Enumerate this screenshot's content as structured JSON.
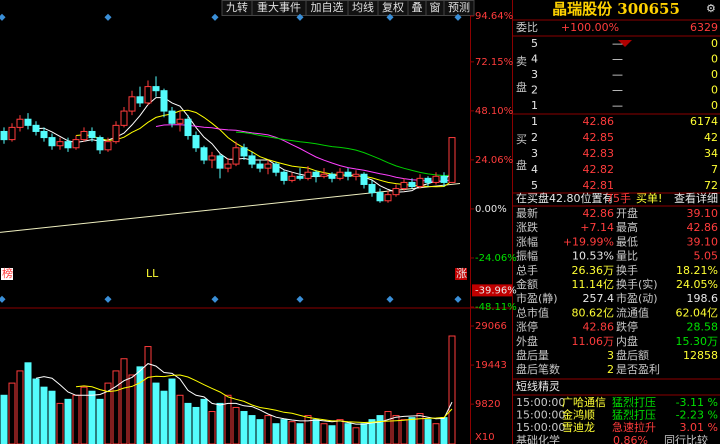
{
  "toolbar": [
    "九转",
    "重大事件",
    "加自选",
    "均线",
    "复权",
    "叠",
    "窗",
    "预测"
  ],
  "chart": {
    "type": "candlestick",
    "ylim": [
      -48.11,
      94.64
    ],
    "yticks": [
      {
        "value": 94.64,
        "label": "94.64%"
      },
      {
        "value": 72.15,
        "label": "72.15%"
      },
      {
        "value": 48.1,
        "label": "48.10%"
      },
      {
        "value": 24.06,
        "label": "24.06%"
      },
      {
        "value": 0,
        "label": "0.00%"
      },
      {
        "value": -24.06,
        "label": "-24.06%"
      },
      {
        "value": -48.11,
        "label": "-48.11%"
      }
    ],
    "current_tick": {
      "value": -39.96,
      "label": "-39.96%"
    },
    "trend": [
      -11.5,
      12.5
    ],
    "candles": [
      [
        38,
        34,
        40,
        32
      ],
      [
        34,
        40,
        42,
        33
      ],
      [
        40,
        44,
        46,
        38
      ],
      [
        44,
        41,
        47,
        39
      ],
      [
        41,
        38,
        43,
        36
      ],
      [
        38,
        35,
        40,
        33
      ],
      [
        35,
        31,
        37,
        29
      ],
      [
        31,
        33,
        35,
        29
      ],
      [
        33,
        30,
        35,
        28
      ],
      [
        30,
        34,
        36,
        29
      ],
      [
        34,
        38,
        40,
        33
      ],
      [
        38,
        35,
        40,
        33
      ],
      [
        35,
        29,
        36,
        27
      ],
      [
        29,
        33,
        35,
        28
      ],
      [
        33,
        41,
        43,
        32
      ],
      [
        41,
        48,
        50,
        40
      ],
      [
        48,
        55,
        58,
        46
      ],
      [
        55,
        52,
        60,
        50
      ],
      [
        52,
        60,
        63,
        51
      ],
      [
        60,
        58,
        65,
        55
      ],
      [
        58,
        48,
        59,
        45
      ],
      [
        48,
        42,
        50,
        40
      ],
      [
        42,
        44,
        48,
        38
      ],
      [
        44,
        36,
        46,
        34
      ],
      [
        36,
        30,
        38,
        28
      ],
      [
        30,
        24,
        31,
        22
      ],
      [
        24,
        26,
        28,
        20
      ],
      [
        26,
        20,
        27,
        15
      ],
      [
        20,
        22,
        25,
        18
      ],
      [
        22,
        30,
        33,
        21
      ],
      [
        30,
        26,
        32,
        24
      ],
      [
        26,
        22,
        28,
        20
      ],
      [
        22,
        20,
        24,
        18
      ],
      [
        20,
        22,
        24,
        17
      ],
      [
        22,
        18,
        23,
        16
      ],
      [
        18,
        14,
        19,
        12
      ],
      [
        14,
        16,
        18,
        13
      ],
      [
        16,
        15,
        20,
        14
      ],
      [
        15,
        18,
        21,
        14
      ],
      [
        18,
        16,
        19,
        13
      ],
      [
        16,
        17,
        20,
        15
      ],
      [
        17,
        15,
        18,
        13
      ],
      [
        15,
        18,
        20,
        14
      ],
      [
        18,
        16,
        20,
        14
      ],
      [
        16,
        17,
        19,
        14
      ],
      [
        17,
        12,
        18,
        10
      ],
      [
        12,
        8,
        14,
        6
      ],
      [
        8,
        4,
        10,
        3
      ],
      [
        4,
        7,
        9,
        3
      ],
      [
        7,
        10,
        12,
        6
      ],
      [
        10,
        13,
        15,
        9
      ],
      [
        13,
        11,
        15,
        10
      ],
      [
        11,
        15,
        17,
        10
      ],
      [
        15,
        13,
        16,
        11
      ],
      [
        13,
        16,
        18,
        12
      ],
      [
        16,
        13,
        18,
        11
      ],
      [
        13,
        35,
        35,
        13
      ]
    ],
    "markers": [
      "榜",
      "LL",
      "涨"
    ],
    "volume": {
      "ylim": [
        0,
        32514
      ],
      "yticks": [
        29066,
        19443,
        9820
      ],
      "unit": "X10",
      "values": [
        12000,
        15000,
        18000,
        20000,
        16000,
        14000,
        13000,
        10000,
        11000,
        12000,
        14000,
        13000,
        11000,
        15000,
        18000,
        21000,
        17000,
        19000,
        24000,
        15000,
        13000,
        16000,
        12000,
        10000,
        9000,
        11000,
        8000,
        10000,
        12000,
        9000,
        8000,
        7000,
        6000,
        7000,
        5000,
        6000,
        5500,
        5000,
        7000,
        6000,
        5000,
        4500,
        6000,
        5000,
        4000,
        5000,
        6000,
        7000,
        8000,
        7000,
        6000,
        6500,
        7500,
        6000,
        5000,
        6500,
        26600
      ]
    }
  },
  "quote": {
    "title": "晶瑞股份 300655",
    "weibi": [
      "委比",
      "+100.00%",
      "6329"
    ],
    "sell_label": [
      "卖",
      "盘"
    ],
    "sell": [
      [
        "5",
        "—",
        "0"
      ],
      [
        "4",
        "—",
        "0"
      ],
      [
        "3",
        "—",
        "0"
      ],
      [
        "2",
        "—",
        "0"
      ],
      [
        "1",
        "—",
        "0"
      ]
    ],
    "buy_label": [
      "买",
      "盘"
    ],
    "buy": [
      [
        "1",
        "42.86",
        "6174"
      ],
      [
        "2",
        "42.85",
        "42"
      ],
      [
        "3",
        "42.83",
        "34"
      ],
      [
        "4",
        "42.82",
        "7"
      ],
      [
        "5",
        "42.81",
        "72"
      ]
    ],
    "notice": [
      "在买盘42.80位置有",
      "75手",
      "买单!",
      "查看详细"
    ],
    "stats": [
      [
        "最新",
        "42.86",
        "开盘",
        "39.10"
      ],
      [
        "涨跌",
        "+7.14",
        "最高",
        "42.86"
      ],
      [
        "涨幅",
        "+19.99%",
        "最低",
        "39.10"
      ],
      [
        "振幅",
        "10.53%",
        "量比",
        "5.05"
      ],
      [
        "总手",
        "26.36万",
        "换手",
        "18.21%"
      ],
      [
        "金额",
        "11.14亿",
        "换手(实)",
        "24.05%"
      ],
      [
        "市盈(静)",
        "257.4",
        "市盈(动)",
        "198.6"
      ],
      [
        "总市值",
        "80.62亿",
        "流通值",
        "62.04亿"
      ],
      [
        "涨停",
        "42.86",
        "跌停",
        "28.58"
      ],
      [
        "外盘",
        "11.06万",
        "内盘",
        "15.30万"
      ],
      [
        "盘后量",
        "3",
        "盘后额",
        "12858"
      ],
      [
        "盘后笔数",
        "2",
        "是否盈利",
        ""
      ]
    ],
    "elf_title": "短线精灵",
    "elf": [
      [
        "15:00:00",
        "广哈通信",
        "猛烈打压",
        "-3.11 %"
      ],
      [
        "15:00:00",
        "金鸿顺",
        "猛烈打压",
        "-2.23 %"
      ],
      [
        "15:00:00",
        "雪迪龙",
        "急速拉升",
        "3.01 %"
      ]
    ],
    "footer": [
      "基础化学",
      "0.86%",
      "同行比较"
    ]
  }
}
